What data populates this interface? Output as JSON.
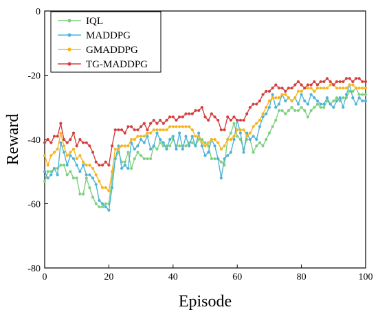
{
  "chart_data": {
    "type": "line",
    "xlabel": "Episode",
    "ylabel": "Reward",
    "xlim": [
      0,
      100
    ],
    "ylim": [
      -80,
      0
    ],
    "xticks": [
      0,
      20,
      40,
      60,
      80,
      100
    ],
    "yticks": [
      0,
      -20,
      -40,
      -60,
      -80
    ],
    "grid": false,
    "legend_position": "top-left",
    "x": [
      0,
      1,
      2,
      3,
      4,
      5,
      6,
      7,
      8,
      9,
      10,
      11,
      12,
      13,
      14,
      15,
      16,
      17,
      18,
      19,
      20,
      21,
      22,
      23,
      24,
      25,
      26,
      27,
      28,
      29,
      30,
      31,
      32,
      33,
      34,
      35,
      36,
      37,
      38,
      39,
      40,
      41,
      42,
      43,
      44,
      45,
      46,
      47,
      48,
      49,
      50,
      51,
      52,
      53,
      54,
      55,
      56,
      57,
      58,
      59,
      60,
      61,
      62,
      63,
      64,
      65,
      66,
      67,
      68,
      69,
      70,
      71,
      72,
      73,
      74,
      75,
      76,
      77,
      78,
      79,
      80,
      81,
      82,
      83,
      84,
      85,
      86,
      87,
      88,
      89,
      90,
      91,
      92,
      93,
      94,
      95,
      96,
      97,
      98,
      99,
      100
    ],
    "series": [
      {
        "name": "IQL",
        "color": "#7fd07f",
        "values": [
          -53,
          -50,
          -50,
          -49,
          -49,
          -48,
          -48,
          -51,
          -50,
          -52,
          -52,
          -57,
          -57,
          -52,
          -55,
          -58,
          -60,
          -61,
          -61,
          -60,
          -60,
          -52,
          -46,
          -44,
          -47,
          -47,
          -44,
          -49,
          -46,
          -44,
          -45,
          -46,
          -46,
          -46,
          -42,
          -43,
          -41,
          -42,
          -42,
          -42,
          -40,
          -42,
          -42,
          -42,
          -42,
          -41,
          -41,
          -42,
          -40,
          -40,
          -41,
          -42,
          -46,
          -46,
          -46,
          -47,
          -48,
          -40,
          -38,
          -35,
          -39,
          -40,
          -43,
          -40,
          -40,
          -44,
          -42,
          -41,
          -42,
          -40,
          -38,
          -36,
          -34,
          -31,
          -31,
          -32,
          -31,
          -30,
          -31,
          -31,
          -30,
          -31,
          -33,
          -31,
          -30,
          -29,
          -30,
          -30,
          -28,
          -29,
          -28,
          -27,
          -28,
          -27,
          -27,
          -25,
          -25,
          -24,
          -26,
          -26,
          -26
        ]
      },
      {
        "name": "MADDPG",
        "color": "#4fb3d6",
        "values": [
          -50,
          -52,
          -51,
          -49,
          -51,
          -41,
          -44,
          -48,
          -45,
          -46,
          -48,
          -50,
          -48,
          -51,
          -51,
          -52,
          -54,
          -59,
          -60,
          -61,
          -62,
          -55,
          -46,
          -42,
          -49,
          -48,
          -49,
          -41,
          -43,
          -42,
          -40,
          -41,
          -39,
          -43,
          -42,
          -38,
          -40,
          -41,
          -43,
          -40,
          -39,
          -43,
          -38,
          -43,
          -39,
          -42,
          -39,
          -42,
          -38,
          -42,
          -45,
          -44,
          -40,
          -42,
          -46,
          -52,
          -46,
          -45,
          -44,
          -40,
          -34,
          -38,
          -44,
          -38,
          -40,
          -39,
          -40,
          -36,
          -33,
          -32,
          -30,
          -26,
          -30,
          -29,
          -26,
          -28,
          -27,
          -28,
          -27,
          -29,
          -26,
          -28,
          -29,
          -26,
          -27,
          -28,
          -29,
          -29,
          -27,
          -29,
          -30,
          -28,
          -27,
          -30,
          -26,
          -23,
          -27,
          -29,
          -27,
          -28,
          -28
        ]
      },
      {
        "name": "GMADDPG",
        "color": "#f5b51f",
        "values": [
          -45,
          -48,
          -45,
          -44,
          -43,
          -38,
          -42,
          -45,
          -44,
          -43,
          -46,
          -45,
          -47,
          -48,
          -48,
          -49,
          -51,
          -53,
          -55,
          -55,
          -56,
          -50,
          -43,
          -43,
          -42,
          -42,
          -42,
          -40,
          -40,
          -39,
          -39,
          -39,
          -38,
          -38,
          -37,
          -37,
          -37,
          -37,
          -37,
          -36,
          -36,
          -36,
          -36,
          -36,
          -36,
          -36,
          -37,
          -39,
          -39,
          -41,
          -42,
          -41,
          -40,
          -40,
          -41,
          -43,
          -42,
          -40,
          -40,
          -39,
          -37,
          -37,
          -37,
          -39,
          -38,
          -36,
          -35,
          -34,
          -32,
          -30,
          -28,
          -27,
          -27,
          -27,
          -26,
          -26,
          -27,
          -28,
          -27,
          -25,
          -25,
          -24,
          -24,
          -24,
          -25,
          -24,
          -24,
          -24,
          -24,
          -23,
          -23,
          -24,
          -24,
          -24,
          -24,
          -23,
          -23,
          -24,
          -24,
          -24,
          -24
        ]
      },
      {
        "name": "TG-MADDPG",
        "color": "#d63f3f",
        "values": [
          -41,
          -40,
          -41,
          -39,
          -39,
          -35,
          -40,
          -41,
          -40,
          -38,
          -42,
          -40,
          -41,
          -41,
          -42,
          -44,
          -47,
          -48,
          -48,
          -47,
          -48,
          -42,
          -37,
          -37,
          -37,
          -38,
          -36,
          -36,
          -37,
          -37,
          -36,
          -35,
          -37,
          -35,
          -34,
          -35,
          -34,
          -35,
          -34,
          -33,
          -33,
          -34,
          -33,
          -33,
          -32,
          -32,
          -32,
          -31,
          -31,
          -30,
          -33,
          -34,
          -32,
          -33,
          -34,
          -37,
          -37,
          -33,
          -34,
          -33,
          -34,
          -34,
          -34,
          -32,
          -30,
          -29,
          -29,
          -28,
          -26,
          -25,
          -25,
          -24,
          -23,
          -24,
          -24,
          -25,
          -24,
          -24,
          -23,
          -22,
          -23,
          -24,
          -23,
          -23,
          -22,
          -23,
          -22,
          -22,
          -21,
          -22,
          -23,
          -22,
          -22,
          -22,
          -21,
          -21,
          -22,
          -21,
          -21,
          -22,
          -22
        ]
      }
    ]
  }
}
